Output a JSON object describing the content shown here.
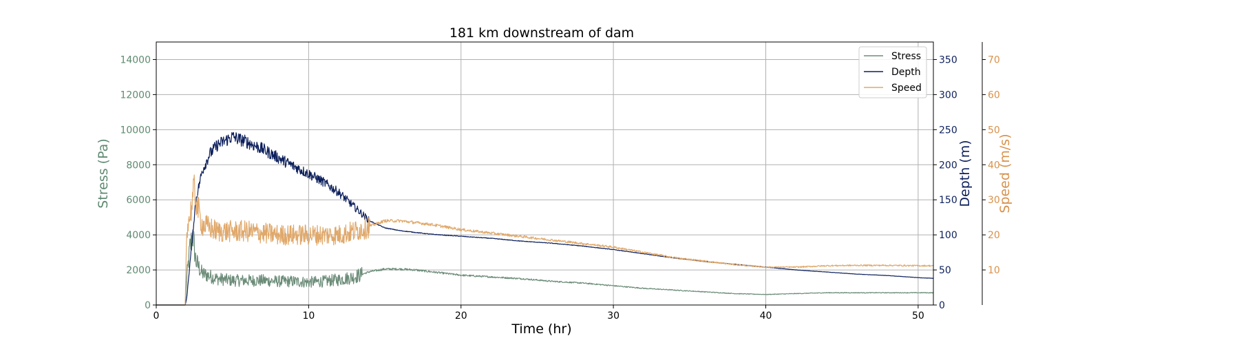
{
  "chart_data": {
    "type": "line",
    "title": "181 km downstream of dam",
    "xlabel": "Time (hr)",
    "xlim": [
      0,
      51
    ],
    "xticks": [
      0,
      10,
      20,
      30,
      40,
      50
    ],
    "grid": true,
    "legend_position": "top-right",
    "axes": [
      {
        "id": "stress",
        "label": "Stress (Pa)",
        "side": "left",
        "color": "#5e8a70",
        "ylim": [
          0,
          15000
        ],
        "ticks": [
          0,
          2000,
          4000,
          6000,
          8000,
          10000,
          12000,
          14000
        ]
      },
      {
        "id": "depth",
        "label": "Depth (m)",
        "side": "right",
        "color": "#0c1f5c",
        "ylim": [
          0,
          375
        ],
        "ticks": [
          0,
          50,
          100,
          150,
          200,
          250,
          300,
          350
        ]
      },
      {
        "id": "speed",
        "label": "Speed (m/s)",
        "side": "right-outer",
        "color": "#d9914a",
        "ylim": [
          0,
          75
        ],
        "ticks": [
          10,
          20,
          30,
          40,
          50,
          60,
          70
        ]
      }
    ],
    "series": [
      {
        "name": "Stress",
        "axis": "stress",
        "color": "#6b8c78",
        "noise": 0.25,
        "noise_until": 13.5,
        "x": [
          0,
          1.9,
          2.0,
          2.2,
          2.4,
          2.6,
          3.0,
          4.0,
          5.0,
          6.0,
          7.0,
          8.0,
          9.0,
          10.0,
          11.0,
          12.0,
          13.0,
          14.0,
          15.0,
          16.0,
          17.0,
          18.0,
          20.0,
          22.0,
          24.0,
          26.0,
          28.0,
          30.0,
          32.0,
          34.0,
          36.0,
          38.0,
          40.0,
          42.0,
          44.0,
          46.0,
          48.0,
          50.0,
          51.0
        ],
        "y": [
          0,
          0,
          1500,
          3200,
          4000,
          2500,
          1800,
          1500,
          1400,
          1400,
          1400,
          1350,
          1350,
          1300,
          1350,
          1450,
          1600,
          1900,
          2050,
          2050,
          2000,
          1900,
          1700,
          1600,
          1500,
          1350,
          1250,
          1100,
          950,
          850,
          750,
          650,
          600,
          650,
          700,
          700,
          700,
          700,
          700
        ]
      },
      {
        "name": "Depth",
        "axis": "depth",
        "color": "#0c1f5c",
        "noise": 0.04,
        "noise_until": 14.0,
        "x": [
          0,
          1.9,
          2.0,
          2.3,
          2.6,
          3.0,
          3.5,
          4.0,
          5.0,
          6.0,
          7.0,
          8.0,
          9.0,
          10.0,
          11.0,
          12.0,
          13.0,
          14.0,
          15.0,
          16.0,
          18.0,
          20.0,
          22.0,
          24.0,
          26.0,
          28.0,
          30.0,
          32.0,
          34.0,
          36.0,
          38.0,
          40.0,
          42.0,
          44.0,
          46.0,
          48.0,
          50.0,
          51.0
        ],
        "y": [
          0,
          0,
          10,
          80,
          150,
          190,
          215,
          228,
          240,
          232,
          222,
          210,
          198,
          187,
          175,
          160,
          140,
          120,
          110,
          106,
          101,
          98,
          95,
          91,
          88,
          84,
          79,
          73,
          67,
          62,
          58,
          54,
          50,
          47,
          44,
          42,
          39,
          38
        ]
      },
      {
        "name": "Speed",
        "axis": "speed",
        "color": "#e0a86a",
        "noise": 0.15,
        "noise_until": 14.0,
        "x": [
          0,
          1.9,
          2.0,
          2.2,
          2.5,
          2.7,
          3.0,
          4.0,
          5.0,
          6.0,
          7.0,
          8.0,
          9.0,
          10.0,
          11.0,
          12.0,
          13.0,
          14.0,
          15.0,
          16.0,
          17.0,
          18.0,
          20.0,
          22.0,
          24.0,
          26.0,
          28.0,
          30.0,
          32.0,
          34.0,
          36.0,
          38.0,
          40.0,
          42.0,
          44.0,
          46.0,
          48.0,
          50.0,
          51.0
        ],
        "y": [
          0,
          0,
          22,
          25,
          33,
          28,
          23,
          21,
          21,
          21,
          20.5,
          20,
          20,
          20,
          20,
          20,
          21,
          22.5,
          24,
          24,
          23.5,
          23,
          21.5,
          20.5,
          19.5,
          18.5,
          17.5,
          16.5,
          15,
          13.5,
          12.5,
          11.5,
          10.8,
          10.8,
          11.2,
          11.3,
          11.3,
          11.2,
          11.2
        ]
      }
    ]
  }
}
